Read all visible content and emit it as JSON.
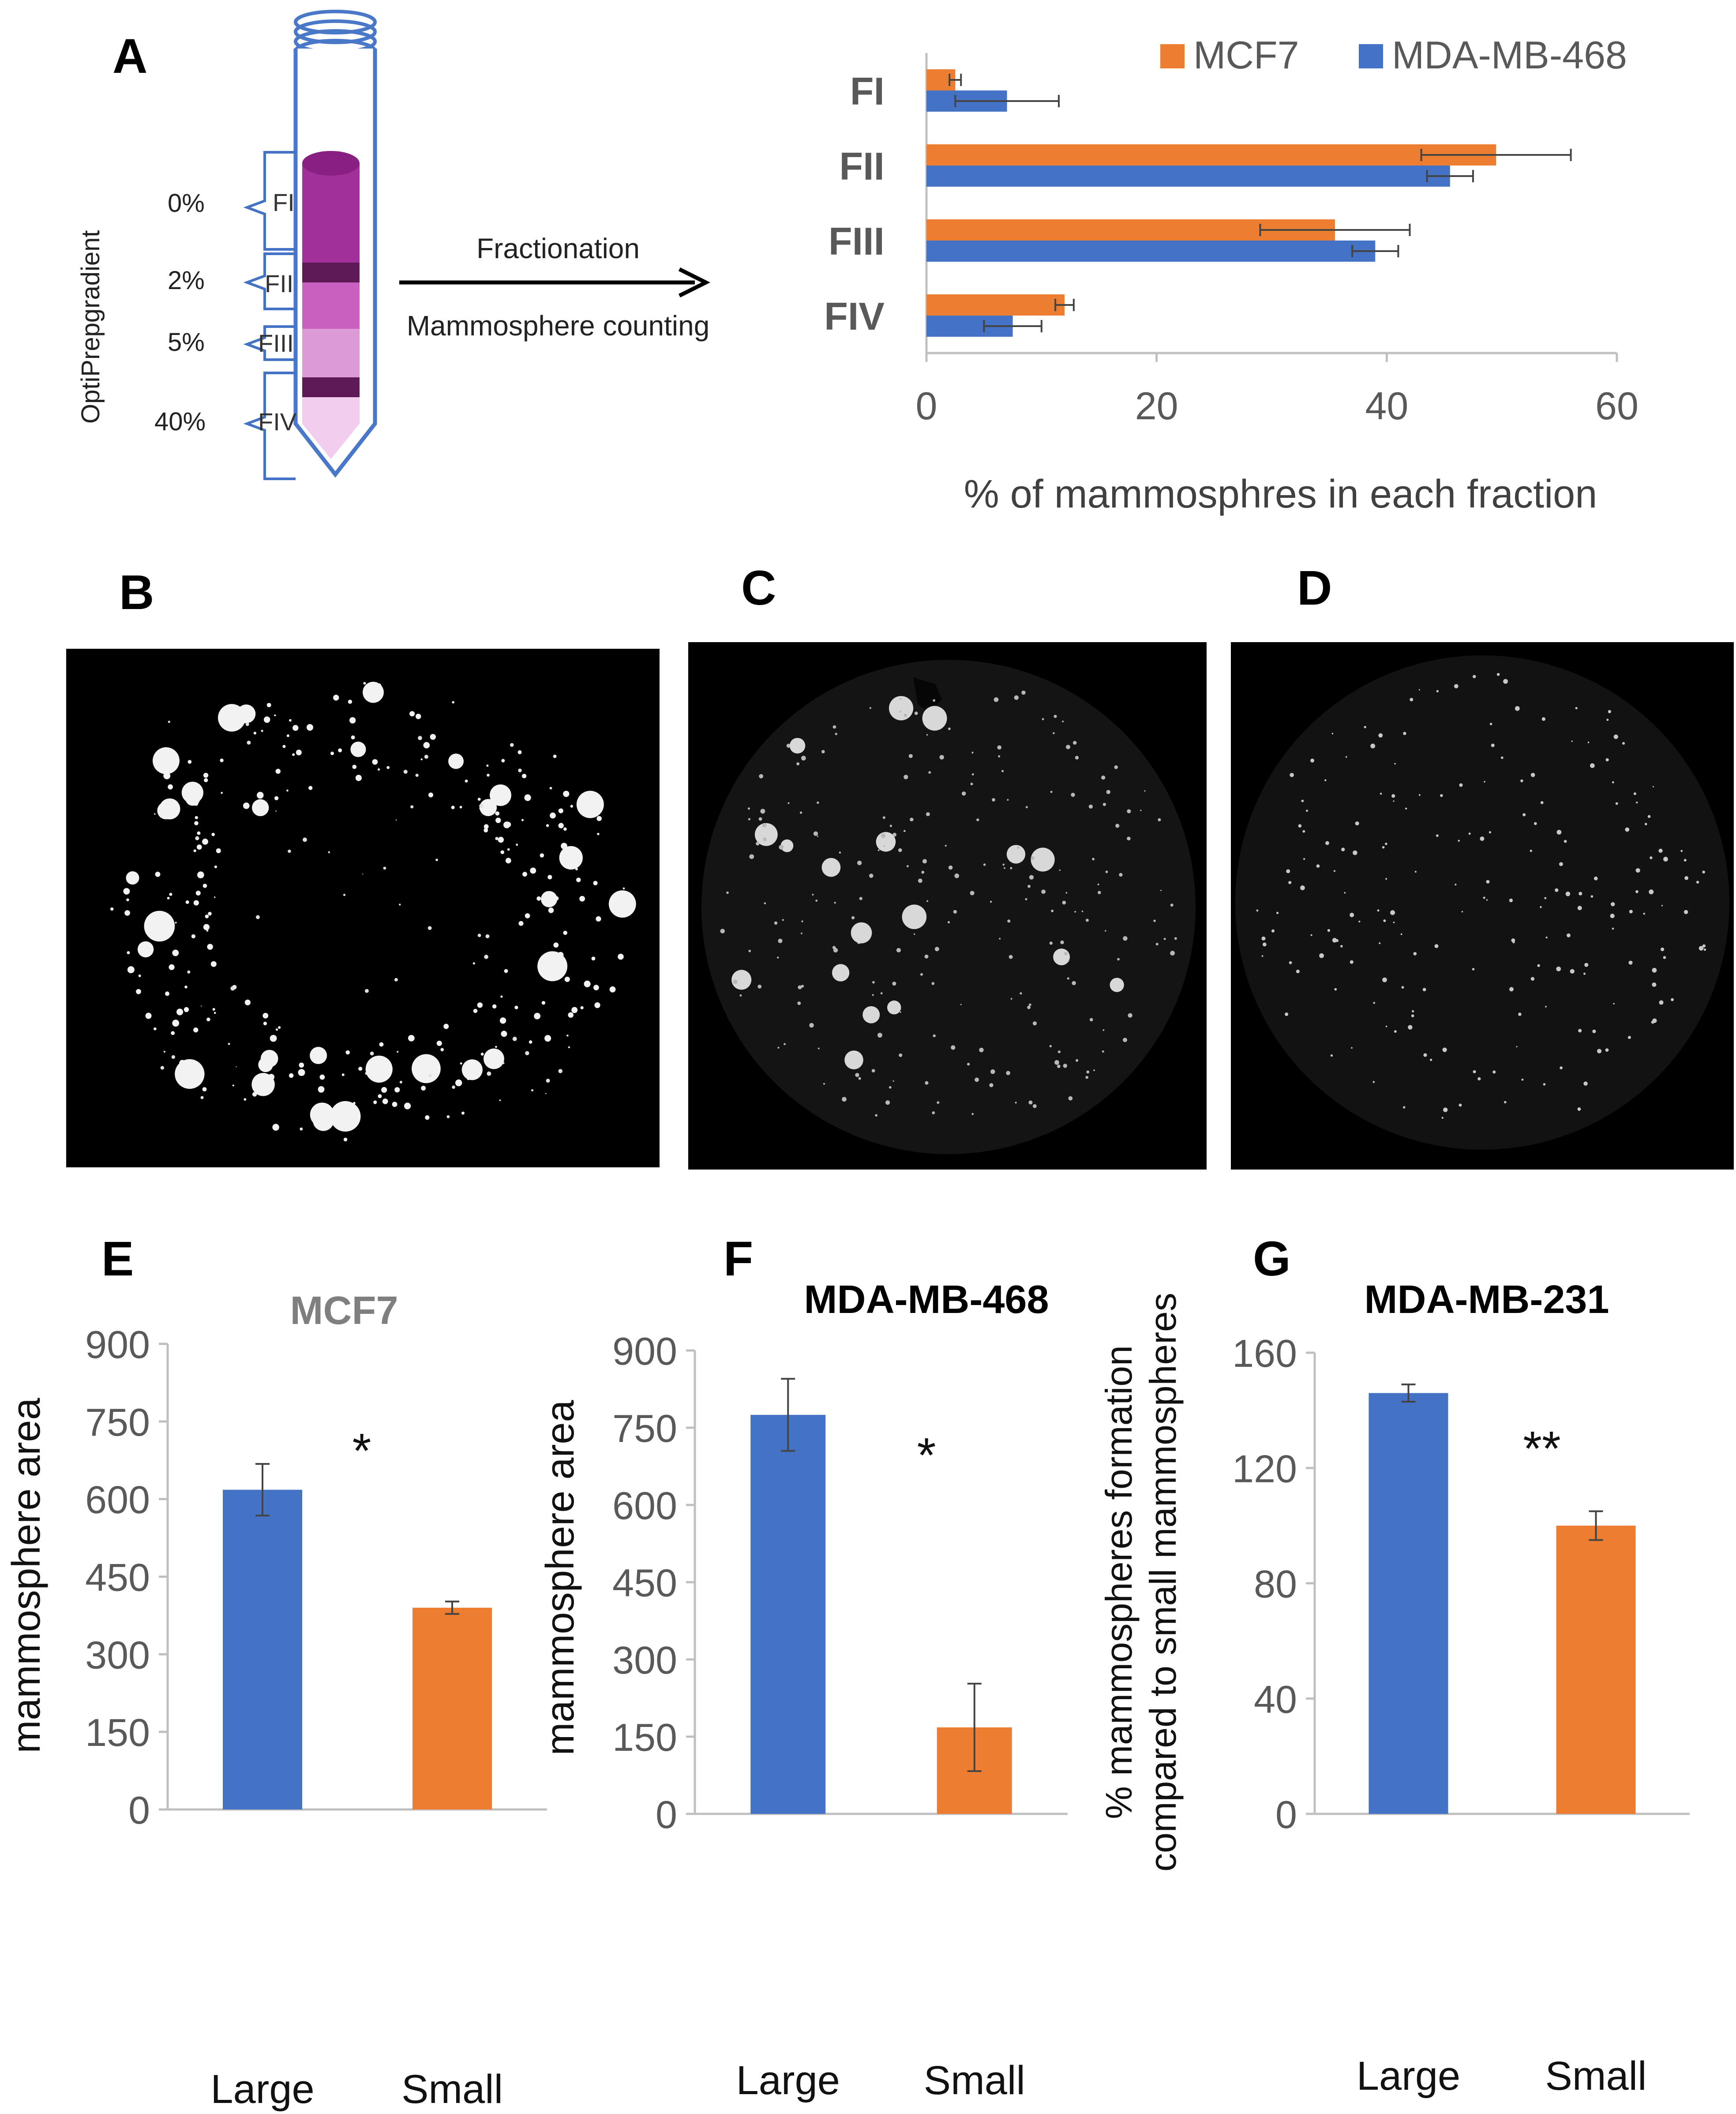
{
  "panel_labels": {
    "A": "A",
    "B": "B",
    "C": "C",
    "D": "D",
    "E": "E",
    "F": "F",
    "G": "G"
  },
  "diagram": {
    "gradient_label": "OptiPrepgradient",
    "concentrations": [
      "0%",
      "2%",
      "5%",
      "40%"
    ],
    "fractions": [
      "FI",
      "FII",
      "FIII",
      "FIV"
    ],
    "arrow_top": "Fractionation",
    "arrow_bottom": "Mammosphere counting",
    "colors": {
      "fraction1": "#a2309b",
      "fraction2": "#c95fbf",
      "fraction3": "#dc9ad6",
      "fraction4": "#f2cdee",
      "band": "#5e1a57",
      "bracket": "#4472c4"
    }
  },
  "chart_data": [
    {
      "type": "bar",
      "orientation": "horizontal",
      "panel": "A",
      "categories": [
        "FI",
        "FII",
        "FIII",
        "FIV"
      ],
      "series": [
        {
          "name": "MCF7",
          "color": "#ed7d31",
          "values": [
            2.5,
            49.5,
            35.5,
            12.0
          ],
          "errors": [
            0.5,
            6.5,
            6.5,
            0.8
          ]
        },
        {
          "name": "MDA-MB-468",
          "color": "#4472c4",
          "values": [
            7.0,
            45.5,
            39.0,
            7.5
          ],
          "errors": [
            4.5,
            2.0,
            2.0,
            2.5
          ]
        }
      ],
      "xlabel": "% of mammosphres in each fraction",
      "xlim": [
        0,
        60
      ],
      "xticks": [
        "0",
        "20",
        "40",
        "60"
      ],
      "legend_position": "top-right"
    },
    {
      "type": "bar",
      "panel": "E",
      "title": "MCF7",
      "categories": [
        "Large",
        "Small"
      ],
      "values": [
        618,
        390
      ],
      "errors": [
        50,
        12
      ],
      "colors": [
        "#4472c4",
        "#ed7d31"
      ],
      "ylabel": "mammosphere area",
      "ylim": [
        0,
        900
      ],
      "yticks": [
        "0",
        "150",
        "300",
        "450",
        "600",
        "750",
        "900"
      ],
      "annotation": "*"
    },
    {
      "type": "bar",
      "panel": "F",
      "title": "MDA-MB-468",
      "categories": [
        "Large",
        "Small"
      ],
      "values": [
        775,
        168
      ],
      "errors": [
        70,
        85
      ],
      "colors": [
        "#4472c4",
        "#ed7d31"
      ],
      "ylabel": "mammosphere area",
      "ylim": [
        0,
        900
      ],
      "yticks": [
        "0",
        "150",
        "300",
        "450",
        "600",
        "750",
        "900"
      ],
      "annotation": "*"
    },
    {
      "type": "bar",
      "panel": "G",
      "title": "MDA-MB-231",
      "categories": [
        "Large",
        "Small"
      ],
      "values": [
        146,
        100
      ],
      "errors": [
        3,
        5
      ],
      "colors": [
        "#4472c4",
        "#ed7d31"
      ],
      "ylabel_line1": "% mammospheres formation",
      "ylabel_line2": "compared to small mammospheres",
      "ylim": [
        0,
        160
      ],
      "yticks": [
        "0",
        "40",
        "80",
        "120",
        "160"
      ],
      "annotation": "**"
    }
  ]
}
